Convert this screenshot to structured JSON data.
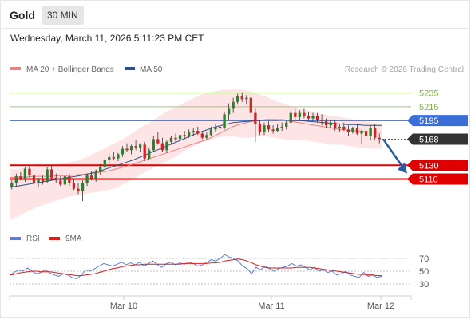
{
  "header": {
    "instrument": "Gold",
    "timeframe": "30 MIN",
    "datetime": "Wednesday, March 11, 2026 5:11:23 PM CET"
  },
  "legend": {
    "ma20_label": "MA 20 + Bollinger Bands",
    "ma50_label": "MA 50",
    "credit": "Research © 2026 Trading Central",
    "rsi_label": "RSI",
    "rsi_ma_label": "9MA"
  },
  "colors": {
    "bull": "#2e7d32",
    "bear": "#c62828",
    "ma20": "#ef8080",
    "ma50": "#2b4f8e",
    "bollinger_fill": "#fde2e2",
    "resistance_blue": "#3a6fd8",
    "target_green": "#9ccc65",
    "support_red": "#e00000",
    "current": "#333333",
    "arrow": "#2b5aa0",
    "rsi_line": "#5b7fd6",
    "rsi_ma_line": "#d62020"
  },
  "chart_data": [
    {
      "type": "candlestick",
      "x_ticks": [
        "Mar 10",
        "Mar 11",
        "Mar 12"
      ],
      "y_range": [
        5040,
        5260
      ],
      "levels": [
        {
          "label": "5235",
          "value": 5235,
          "kind": "target"
        },
        {
          "label": "5215",
          "value": 5215,
          "kind": "target"
        },
        {
          "label": "5195",
          "value": 5195,
          "kind": "resistance"
        },
        {
          "label": "5168",
          "value": 5168,
          "kind": "current"
        },
        {
          "label": "5130",
          "value": 5130,
          "kind": "support"
        },
        {
          "label": "5110",
          "value": 5110,
          "kind": "support"
        }
      ],
      "forecast": {
        "from": 5168,
        "to": 5118
      },
      "candles": [
        [
          5098,
          5108,
          5095,
          5104
        ],
        [
          5104,
          5118,
          5100,
          5114
        ],
        [
          5114,
          5120,
          5108,
          5110
        ],
        [
          5110,
          5128,
          5106,
          5125
        ],
        [
          5125,
          5130,
          5112,
          5115
        ],
        [
          5115,
          5120,
          5100,
          5104
        ],
        [
          5104,
          5112,
          5098,
          5110
        ],
        [
          5110,
          5115,
          5102,
          5106
        ],
        [
          5106,
          5128,
          5104,
          5124
        ],
        [
          5124,
          5130,
          5108,
          5112
        ],
        [
          5112,
          5118,
          5104,
          5108
        ],
        [
          5108,
          5114,
          5100,
          5102
        ],
        [
          5102,
          5116,
          5098,
          5114
        ],
        [
          5114,
          5118,
          5100,
          5104
        ],
        [
          5104,
          5110,
          5094,
          5096
        ],
        [
          5096,
          5104,
          5088,
          5092
        ],
        [
          5092,
          5108,
          5078,
          5104
        ],
        [
          5104,
          5118,
          5100,
          5115
        ],
        [
          5115,
          5122,
          5108,
          5110
        ],
        [
          5110,
          5124,
          5106,
          5120
        ],
        [
          5120,
          5132,
          5116,
          5128
        ],
        [
          5128,
          5140,
          5126,
          5138
        ],
        [
          5138,
          5146,
          5134,
          5142
        ],
        [
          5142,
          5150,
          5138,
          5140
        ],
        [
          5140,
          5148,
          5136,
          5146
        ],
        [
          5146,
          5158,
          5142,
          5154
        ],
        [
          5154,
          5162,
          5150,
          5152
        ],
        [
          5152,
          5160,
          5146,
          5158
        ],
        [
          5158,
          5166,
          5152,
          5156
        ],
        [
          5156,
          5162,
          5150,
          5160
        ],
        [
          5160,
          5164,
          5136,
          5140
        ],
        [
          5140,
          5156,
          5138,
          5152
        ],
        [
          5152,
          5172,
          5150,
          5168
        ],
        [
          5168,
          5178,
          5160,
          5162
        ],
        [
          5162,
          5170,
          5150,
          5152
        ],
        [
          5152,
          5166,
          5148,
          5164
        ],
        [
          5164,
          5172,
          5160,
          5170
        ],
        [
          5170,
          5176,
          5164,
          5168
        ],
        [
          5168,
          5178,
          5162,
          5174
        ],
        [
          5174,
          5180,
          5168,
          5172
        ],
        [
          5172,
          5182,
          5170,
          5178
        ],
        [
          5178,
          5184,
          5172,
          5180
        ],
        [
          5180,
          5186,
          5174,
          5176
        ],
        [
          5176,
          5180,
          5168,
          5170
        ],
        [
          5170,
          5178,
          5166,
          5174
        ],
        [
          5174,
          5186,
          5172,
          5182
        ],
        [
          5182,
          5190,
          5178,
          5186
        ],
        [
          5186,
          5192,
          5180,
          5184
        ],
        [
          5184,
          5208,
          5182,
          5204
        ],
        [
          5204,
          5220,
          5196,
          5212
        ],
        [
          5212,
          5228,
          5206,
          5222
        ],
        [
          5222,
          5234,
          5218,
          5230
        ],
        [
          5230,
          5236,
          5222,
          5226
        ],
        [
          5226,
          5232,
          5218,
          5228
        ],
        [
          5228,
          5230,
          5200,
          5206
        ],
        [
          5206,
          5212,
          5164,
          5190
        ],
        [
          5190,
          5196,
          5174,
          5178
        ],
        [
          5178,
          5192,
          5174,
          5188
        ],
        [
          5188,
          5194,
          5178,
          5182
        ],
        [
          5182,
          5188,
          5176,
          5180
        ],
        [
          5180,
          5190,
          5178,
          5184
        ],
        [
          5184,
          5192,
          5180,
          5186
        ],
        [
          5186,
          5196,
          5182,
          5192
        ],
        [
          5192,
          5210,
          5190,
          5206
        ],
        [
          5206,
          5212,
          5196,
          5200
        ],
        [
          5200,
          5210,
          5196,
          5206
        ],
        [
          5206,
          5212,
          5198,
          5202
        ],
        [
          5202,
          5208,
          5194,
          5198
        ],
        [
          5198,
          5206,
          5194,
          5202
        ],
        [
          5202,
          5206,
          5192,
          5196
        ],
        [
          5196,
          5204,
          5188,
          5194
        ],
        [
          5194,
          5198,
          5184,
          5188
        ],
        [
          5188,
          5196,
          5184,
          5192
        ],
        [
          5192,
          5196,
          5180,
          5184
        ],
        [
          5184,
          5190,
          5178,
          5186
        ],
        [
          5186,
          5192,
          5180,
          5182
        ],
        [
          5182,
          5188,
          5172,
          5178
        ],
        [
          5178,
          5186,
          5176,
          5184
        ],
        [
          5184,
          5190,
          5174,
          5176
        ],
        [
          5176,
          5182,
          5160,
          5180
        ],
        [
          5180,
          5186,
          5168,
          5172
        ],
        [
          5172,
          5188,
          5166,
          5184
        ],
        [
          5184,
          5190,
          5166,
          5170
        ],
        [
          5170,
          5176,
          5162,
          5168
        ]
      ],
      "ma20": [
        5112,
        5113,
        5113,
        5114,
        5114,
        5114,
        5115,
        5115,
        5116,
        5117,
        5118,
        5120,
        5122,
        5125,
        5128,
        5132,
        5136,
        5140,
        5144,
        5148,
        5152,
        5156,
        5160,
        5164,
        5168,
        5174,
        5180,
        5186,
        5190,
        5193,
        5195,
        5196,
        5196,
        5195,
        5194,
        5192,
        5190,
        5188,
        5186,
        5184,
        5182,
        5181,
        5180,
        5179,
        5178,
        5178
      ],
      "ma50": [
        5098,
        5100,
        5102,
        5104,
        5106,
        5108,
        5110,
        5112,
        5114,
        5116,
        5119,
        5122,
        5126,
        5130,
        5134,
        5138,
        5143,
        5148,
        5153,
        5158,
        5163,
        5168,
        5173,
        5178,
        5182,
        5186,
        5189,
        5192,
        5193,
        5194,
        5195,
        5196,
        5196,
        5196,
        5195,
        5195,
        5194,
        5193,
        5192,
        5191,
        5190,
        5189,
        5189,
        5188,
        5188,
        5188
      ],
      "bollinger_upper": [
        5125,
        5124,
        5128,
        5128,
        5130,
        5130,
        5132,
        5134,
        5136,
        5140,
        5146,
        5152,
        5158,
        5164,
        5170,
        5178,
        5186,
        5192,
        5200,
        5208,
        5214,
        5220,
        5226,
        5232,
        5236,
        5238,
        5240,
        5240,
        5240,
        5238,
        5234,
        5230,
        5224,
        5220,
        5216,
        5212,
        5210,
        5206,
        5204,
        5202,
        5200,
        5198,
        5196,
        5194,
        5192,
        5190
      ],
      "bollinger_lower": [
        5050,
        5056,
        5062,
        5068,
        5072,
        5076,
        5080,
        5084,
        5086,
        5088,
        5090,
        5092,
        5094,
        5098,
        5104,
        5110,
        5118,
        5124,
        5130,
        5136,
        5142,
        5150,
        5156,
        5162,
        5166,
        5170,
        5172,
        5172,
        5170,
        5170,
        5172,
        5172,
        5170,
        5168,
        5166,
        5166,
        5166,
        5164,
        5162,
        5160,
        5160,
        5158,
        5156,
        5155,
        5154,
        5154
      ]
    },
    {
      "type": "line",
      "name": "RSI",
      "y_ticks": [
        70,
        50,
        30
      ],
      "y_range": [
        20,
        80
      ],
      "rsi": [
        44,
        48,
        52,
        50,
        55,
        50,
        46,
        48,
        52,
        47,
        44,
        42,
        46,
        44,
        40,
        38,
        44,
        52,
        50,
        54,
        58,
        62,
        60,
        58,
        61,
        64,
        60,
        63,
        60,
        64,
        58,
        62,
        66,
        60,
        56,
        62,
        64,
        60,
        63,
        61,
        64,
        62,
        58,
        60,
        64,
        68,
        66,
        70,
        76,
        72,
        70,
        66,
        58,
        54,
        46,
        56,
        52,
        58,
        54,
        50,
        54,
        56,
        58,
        62,
        58,
        60,
        56,
        52,
        56,
        50,
        52,
        48,
        50,
        44,
        46,
        50,
        44,
        42,
        40,
        48,
        42,
        44,
        40,
        42
      ],
      "rsi_ma": [
        44,
        45,
        47,
        48,
        49,
        50,
        50,
        49,
        49,
        49,
        48,
        47,
        46,
        45,
        44,
        43,
        43,
        44,
        45,
        46,
        48,
        50,
        52,
        54,
        55,
        57,
        58,
        59,
        60,
        60,
        61,
        61,
        61,
        61,
        61,
        61,
        61,
        61,
        61,
        62,
        62,
        62,
        62,
        62,
        62,
        63,
        63,
        64,
        66,
        67,
        68,
        69,
        68,
        66,
        63,
        60,
        58,
        56,
        55,
        55,
        55,
        55,
        55,
        55,
        56,
        56,
        56,
        56,
        55,
        54,
        53,
        52,
        51,
        50,
        49,
        48,
        47,
        46,
        45,
        45,
        44,
        44,
        43,
        43
      ]
    }
  ]
}
